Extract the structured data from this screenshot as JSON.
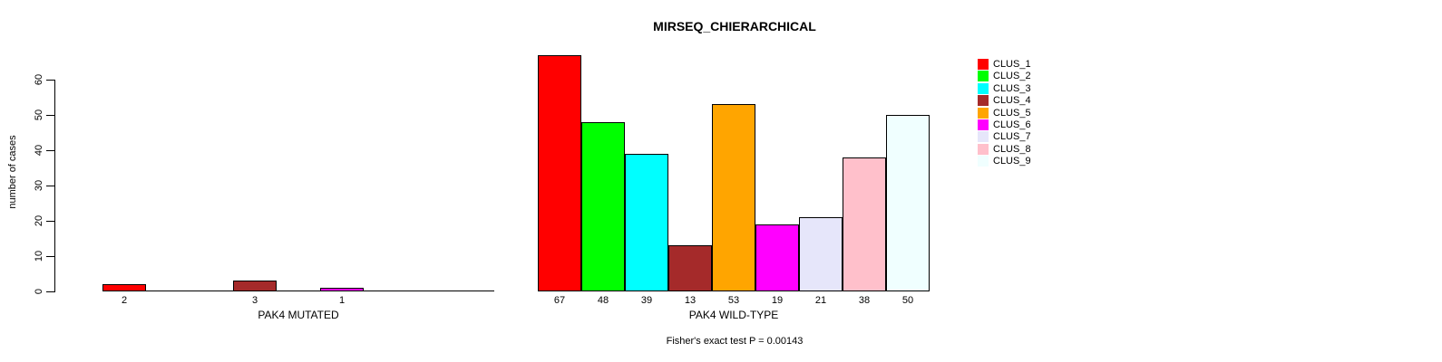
{
  "title": "MIRSEQ_CHIERARCHICAL",
  "annotation": "Fisher's exact test P = 0.00143",
  "y_axis": {
    "label": "number of cases",
    "ticks": [
      "0",
      "10",
      "20",
      "30",
      "40",
      "50",
      "60"
    ],
    "tick_values": [
      0,
      10,
      20,
      30,
      40,
      50,
      60
    ]
  },
  "palette": {
    "CLUS_1": "#FF0000",
    "CLUS_2": "#00FF00",
    "CLUS_3": "#00FFFF",
    "CLUS_4": "#A52A2A",
    "CLUS_5": "#FFA500",
    "CLUS_6": "#FF00FF",
    "CLUS_7": "#E6E6FA",
    "CLUS_8": "#FFC0CB",
    "CLUS_9": "#F0FFFF"
  },
  "legend": {
    "entries": [
      {
        "label": "CLUS_1",
        "color": "#FF0000"
      },
      {
        "label": "CLUS_2",
        "color": "#00FF00"
      },
      {
        "label": "CLUS_3",
        "color": "#00FFFF"
      },
      {
        "label": "CLUS_4",
        "color": "#A52A2A"
      },
      {
        "label": "CLUS_5",
        "color": "#FFA500"
      },
      {
        "label": "CLUS_6",
        "color": "#FF00FF"
      },
      {
        "label": "CLUS_7",
        "color": "#E6E6FA"
      },
      {
        "label": "CLUS_8",
        "color": "#FFC0CB"
      },
      {
        "label": "CLUS_9",
        "color": "#F0FFFF"
      }
    ]
  },
  "chart_data": [
    {
      "type": "bar",
      "panel": "left",
      "xlabel": "PAK4 MUTATED",
      "ylabel": "number of cases",
      "categories": [
        "CLUS_1",
        "CLUS_2",
        "CLUS_3",
        "CLUS_4",
        "CLUS_5",
        "CLUS_6",
        "CLUS_7",
        "CLUS_8",
        "CLUS_9"
      ],
      "values": [
        2,
        0,
        0,
        3,
        0,
        1,
        0,
        0,
        0
      ],
      "colors": [
        "#FF0000",
        "#00FF00",
        "#00FFFF",
        "#A52A2A",
        "#FFA500",
        "#FF00FF",
        "#E6E6FA",
        "#FFC0CB",
        "#F0FFFF"
      ],
      "bar_value_labels": [
        "2",
        "",
        "",
        "3",
        "",
        "1",
        "",
        "",
        ""
      ],
      "ylim": [
        0,
        67
      ],
      "grid": false
    },
    {
      "type": "bar",
      "panel": "right",
      "xlabel": "PAK4 WILD-TYPE",
      "ylabel": "number of cases",
      "categories": [
        "CLUS_1",
        "CLUS_2",
        "CLUS_3",
        "CLUS_4",
        "CLUS_5",
        "CLUS_6",
        "CLUS_7",
        "CLUS_8",
        "CLUS_9"
      ],
      "values": [
        67,
        48,
        39,
        13,
        53,
        19,
        21,
        38,
        50
      ],
      "colors": [
        "#FF0000",
        "#00FF00",
        "#00FFFF",
        "#A52A2A",
        "#FFA500",
        "#FF00FF",
        "#E6E6FA",
        "#FFC0CB",
        "#F0FFFF"
      ],
      "bar_value_labels": [
        "67",
        "48",
        "39",
        "13",
        "53",
        "19",
        "21",
        "38",
        "50"
      ],
      "ylim": [
        0,
        67
      ],
      "grid": false
    }
  ]
}
